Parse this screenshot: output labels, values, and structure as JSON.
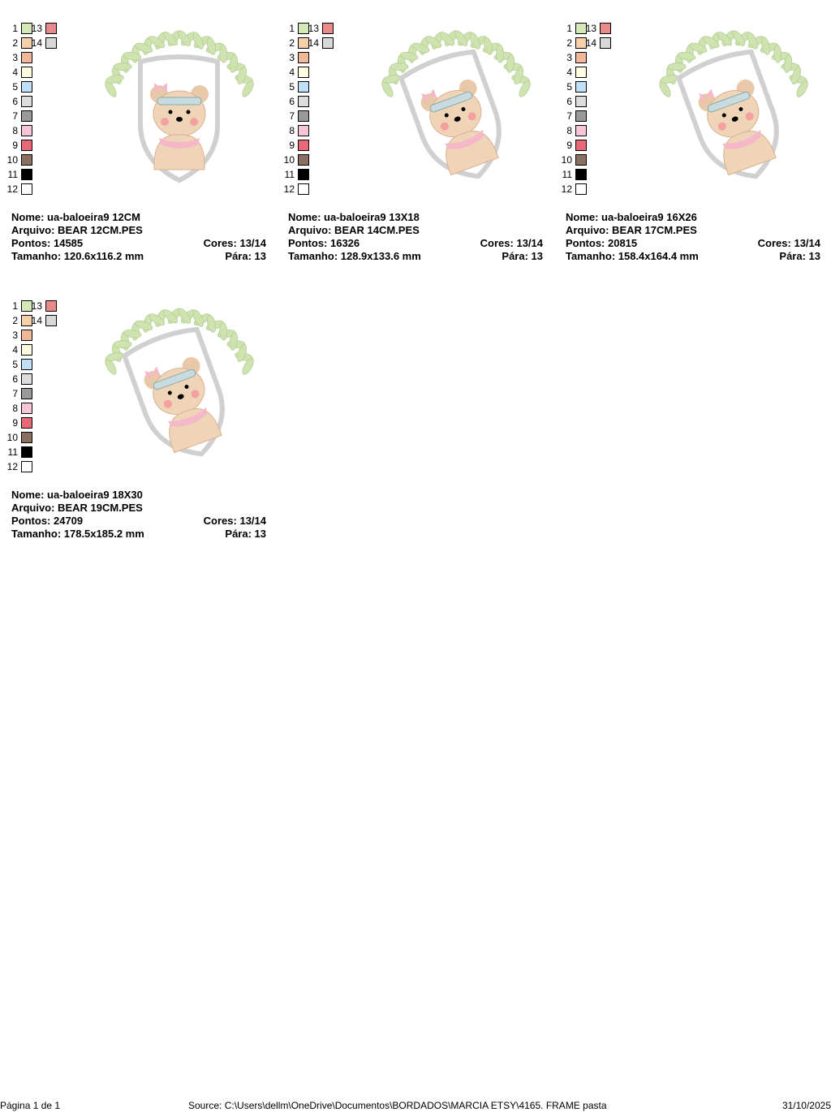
{
  "palette": [
    {
      "n": "1",
      "color": "#d4e8b8"
    },
    {
      "n": "2",
      "color": "#f5d0a8"
    },
    {
      "n": "3",
      "color": "#f0b898"
    },
    {
      "n": "4",
      "color": "#fefde0"
    },
    {
      "n": "5",
      "color": "#c0e0f8"
    },
    {
      "n": "6",
      "color": "#dcdcdc"
    },
    {
      "n": "7",
      "color": "#9a9a9a"
    },
    {
      "n": "8",
      "color": "#f8c4d8"
    },
    {
      "n": "9",
      "color": "#e86878"
    },
    {
      "n": "10",
      "color": "#8a7060"
    },
    {
      "n": "11",
      "color": "#000000"
    },
    {
      "n": "12",
      "color": "#ffffff"
    },
    {
      "n": "13",
      "color": "#e88a8a"
    },
    {
      "n": "14",
      "color": "#d8d8d8"
    }
  ],
  "designs": [
    {
      "nome": "Nome: ua-baloeira9 12CM",
      "arquivo": "Arquivo: BEAR 12CM.PES",
      "pontos": "Pontos: 14585",
      "cores": "Cores: 13/14",
      "tamanho": "Tamanho: 120.6x116.2 mm",
      "para": "Pára: 13",
      "variant": "upright"
    },
    {
      "nome": "Nome: ua-baloeira9 13X18",
      "arquivo": "Arquivo: BEAR 14CM.PES",
      "pontos": "Pontos: 16326",
      "cores": "Cores: 13/14",
      "tamanho": "Tamanho: 128.9x133.6 mm",
      "para": "Pára: 13",
      "variant": "rotated"
    },
    {
      "nome": "Nome: ua-baloeira9 16X26",
      "arquivo": "Arquivo: BEAR 17CM.PES",
      "pontos": "Pontos: 20815",
      "cores": "Cores: 13/14",
      "tamanho": "Tamanho: 158.4x164.4 mm",
      "para": "Pára: 13",
      "variant": "rotated"
    },
    {
      "nome": "Nome: ua-baloeira9 18X30",
      "arquivo": "Arquivo: BEAR 19CM.PES",
      "pontos": "Pontos: 24709",
      "cores": "Cores: 13/14",
      "tamanho": "Tamanho: 178.5x185.2 mm",
      "para": "Pára: 13",
      "variant": "rotated"
    }
  ],
  "footer": {
    "page": "Página 1 de 1",
    "source": "Source: C:\\Users\\dellm\\OneDrive\\Documentos\\BORDADOS\\MARCIA ETSY\\4165. FRAME pasta",
    "date": "31/10/2025"
  }
}
